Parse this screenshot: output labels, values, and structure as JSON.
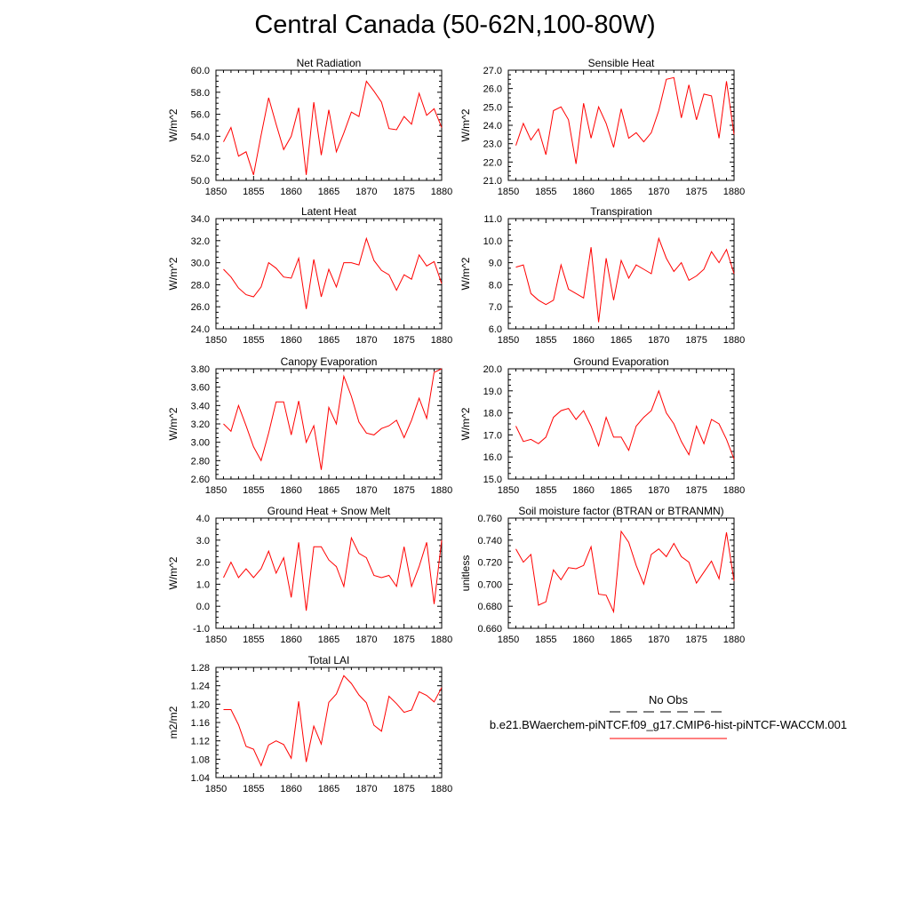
{
  "title": "Central Canada (50-62N,100-80W)",
  "colors": {
    "series": "#ff0000",
    "obs": "#000000",
    "axis": "#000000"
  },
  "legend": {
    "obs_label": "No Obs",
    "case_label": "b.e21.BWaerchem-piNTCF.f09_g17.CMIP6-hist-piNTCF-WACCM.001"
  },
  "chart_data": [
    {
      "type": "line",
      "title": "Net Radiation",
      "ylabel": "W/m^2",
      "xlim": [
        1850,
        1880
      ],
      "ylim": [
        50.0,
        60.0
      ],
      "xticks": [
        "1850",
        "1855",
        "1860",
        "1865",
        "1870",
        "1875",
        "1880"
      ],
      "yticks": [
        "50.0",
        "52.0",
        "54.0",
        "56.0",
        "58.0",
        "60.0"
      ],
      "x": [
        1851,
        1852,
        1853,
        1854,
        1855,
        1856,
        1857,
        1858,
        1859,
        1860,
        1861,
        1862,
        1863,
        1864,
        1865,
        1866,
        1867,
        1868,
        1869,
        1870,
        1871,
        1872,
        1873,
        1874,
        1875,
        1876,
        1877,
        1878,
        1879,
        1880
      ],
      "series": [
        {
          "name": "b.e21.BWaerchem-piNTCF.f09_g17.CMIP6-hist-piNTCF-WACCM.001",
          "values": [
            53.5,
            54.8,
            52.2,
            52.6,
            50.5,
            54.1,
            57.5,
            55.1,
            52.8,
            54.0,
            56.6,
            50.5,
            57.1,
            52.3,
            56.4,
            52.6,
            54.3,
            56.2,
            55.8,
            59.0,
            58.1,
            57.1,
            54.7,
            54.6,
            55.8,
            55.1,
            57.9,
            55.9,
            56.5,
            54.8
          ]
        }
      ]
    },
    {
      "type": "line",
      "title": "Sensible Heat",
      "ylabel": "W/m^2",
      "xlim": [
        1850,
        1880
      ],
      "ylim": [
        21.0,
        27.0
      ],
      "xticks": [
        "1850",
        "1855",
        "1860",
        "1865",
        "1870",
        "1875",
        "1880"
      ],
      "yticks": [
        "21.0",
        "22.0",
        "23.0",
        "24.0",
        "25.0",
        "26.0",
        "27.0"
      ],
      "x": [
        1851,
        1852,
        1853,
        1854,
        1855,
        1856,
        1857,
        1858,
        1859,
        1860,
        1861,
        1862,
        1863,
        1864,
        1865,
        1866,
        1867,
        1868,
        1869,
        1870,
        1871,
        1872,
        1873,
        1874,
        1875,
        1876,
        1877,
        1878,
        1879,
        1880
      ],
      "series": [
        {
          "name": "b.e21.BWaerchem-piNTCF.f09_g17.CMIP6-hist-piNTCF-WACCM.001",
          "values": [
            22.9,
            24.1,
            23.2,
            23.8,
            22.4,
            24.8,
            25.0,
            24.3,
            21.9,
            25.2,
            23.3,
            25.0,
            24.1,
            22.8,
            24.9,
            23.3,
            23.6,
            23.1,
            23.6,
            24.8,
            26.5,
            26.6,
            24.4,
            26.2,
            24.3,
            25.7,
            25.6,
            23.3,
            26.4,
            23.5
          ]
        }
      ]
    },
    {
      "type": "line",
      "title": "Latent Heat",
      "ylabel": "W/m^2",
      "xlim": [
        1850,
        1880
      ],
      "ylim": [
        24.0,
        34.0
      ],
      "xticks": [
        "1850",
        "1855",
        "1860",
        "1865",
        "1870",
        "1875",
        "1880"
      ],
      "yticks": [
        "24.0",
        "26.0",
        "28.0",
        "30.0",
        "32.0",
        "34.0"
      ],
      "x": [
        1851,
        1852,
        1853,
        1854,
        1855,
        1856,
        1857,
        1858,
        1859,
        1860,
        1861,
        1862,
        1863,
        1864,
        1865,
        1866,
        1867,
        1868,
        1869,
        1870,
        1871,
        1872,
        1873,
        1874,
        1875,
        1876,
        1877,
        1878,
        1879,
        1880
      ],
      "series": [
        {
          "name": "b.e21.BWaerchem-piNTCF.f09_g17.CMIP6-hist-piNTCF-WACCM.001",
          "values": [
            29.4,
            28.7,
            27.7,
            27.1,
            26.9,
            27.8,
            30.0,
            29.5,
            28.7,
            28.6,
            30.4,
            25.8,
            30.3,
            26.9,
            29.4,
            27.8,
            30.0,
            30.0,
            29.8,
            32.2,
            30.2,
            29.3,
            28.9,
            27.5,
            28.9,
            28.5,
            30.7,
            29.7,
            30.1,
            28.1
          ]
        }
      ]
    },
    {
      "type": "line",
      "title": "Transpiration",
      "ylabel": "W/m^2",
      "xlim": [
        1850,
        1880
      ],
      "ylim": [
        6.0,
        11.0
      ],
      "xticks": [
        "1850",
        "1855",
        "1860",
        "1865",
        "1870",
        "1875",
        "1880"
      ],
      "yticks": [
        "6.0",
        "7.0",
        "8.0",
        "9.0",
        "10.0",
        "11.0"
      ],
      "x": [
        1851,
        1852,
        1853,
        1854,
        1855,
        1856,
        1857,
        1858,
        1859,
        1860,
        1861,
        1862,
        1863,
        1864,
        1865,
        1866,
        1867,
        1868,
        1869,
        1870,
        1871,
        1872,
        1873,
        1874,
        1875,
        1876,
        1877,
        1878,
        1879,
        1880
      ],
      "series": [
        {
          "name": "b.e21.BWaerchem-piNTCF.f09_g17.CMIP6-hist-piNTCF-WACCM.001",
          "values": [
            8.8,
            8.9,
            7.6,
            7.3,
            7.1,
            7.3,
            8.9,
            7.8,
            7.6,
            7.4,
            9.7,
            6.3,
            9.2,
            7.3,
            9.1,
            8.3,
            8.9,
            8.7,
            8.5,
            10.1,
            9.2,
            8.6,
            9.0,
            8.2,
            8.4,
            8.7,
            9.5,
            9.0,
            9.6,
            8.5
          ]
        }
      ]
    },
    {
      "type": "line",
      "title": "Canopy Evaporation",
      "ylabel": "W/m^2",
      "xlim": [
        1850,
        1880
      ],
      "ylim": [
        2.6,
        3.8
      ],
      "xticks": [
        "1850",
        "1855",
        "1860",
        "1865",
        "1870",
        "1875",
        "1880"
      ],
      "yticks": [
        "2.60",
        "2.80",
        "3.00",
        "3.20",
        "3.40",
        "3.60",
        "3.80"
      ],
      "x": [
        1851,
        1852,
        1853,
        1854,
        1855,
        1856,
        1857,
        1858,
        1859,
        1860,
        1861,
        1862,
        1863,
        1864,
        1865,
        1866,
        1867,
        1868,
        1869,
        1870,
        1871,
        1872,
        1873,
        1874,
        1875,
        1876,
        1877,
        1878,
        1879,
        1880
      ],
      "series": [
        {
          "name": "b.e21.BWaerchem-piNTCF.f09_g17.CMIP6-hist-piNTCF-WACCM.001",
          "values": [
            3.2,
            3.12,
            3.4,
            3.18,
            2.95,
            2.8,
            3.1,
            3.44,
            3.44,
            3.08,
            3.45,
            3.0,
            3.18,
            2.7,
            3.38,
            3.2,
            3.72,
            3.5,
            3.22,
            3.1,
            3.08,
            3.15,
            3.18,
            3.24,
            3.05,
            3.24,
            3.48,
            3.26,
            3.76,
            3.8
          ]
        }
      ]
    },
    {
      "type": "line",
      "title": "Ground Evaporation",
      "ylabel": "W/m^2",
      "xlim": [
        1850,
        1880
      ],
      "ylim": [
        15.0,
        20.0
      ],
      "xticks": [
        "1850",
        "1855",
        "1860",
        "1865",
        "1870",
        "1875",
        "1880"
      ],
      "yticks": [
        "15.0",
        "16.0",
        "17.0",
        "18.0",
        "19.0",
        "20.0"
      ],
      "x": [
        1851,
        1852,
        1853,
        1854,
        1855,
        1856,
        1857,
        1858,
        1859,
        1860,
        1861,
        1862,
        1863,
        1864,
        1865,
        1866,
        1867,
        1868,
        1869,
        1870,
        1871,
        1872,
        1873,
        1874,
        1875,
        1876,
        1877,
        1878,
        1879,
        1880
      ],
      "series": [
        {
          "name": "b.e21.BWaerchem-piNTCF.f09_g17.CMIP6-hist-piNTCF-WACCM.001",
          "values": [
            17.4,
            16.7,
            16.8,
            16.6,
            16.9,
            17.8,
            18.1,
            18.2,
            17.7,
            18.1,
            17.4,
            16.5,
            17.8,
            16.9,
            16.9,
            16.3,
            17.4,
            17.8,
            18.1,
            19.0,
            18.0,
            17.5,
            16.7,
            16.1,
            17.4,
            16.6,
            17.7,
            17.5,
            16.8,
            15.9
          ]
        }
      ]
    },
    {
      "type": "line",
      "title": "Ground Heat + Snow Melt",
      "ylabel": "W/m^2",
      "xlim": [
        1850,
        1880
      ],
      "ylim": [
        -1.0,
        4.0
      ],
      "xticks": [
        "1850",
        "1855",
        "1860",
        "1865",
        "1870",
        "1875",
        "1880"
      ],
      "yticks": [
        "-1.0",
        "0.0",
        "1.0",
        "2.0",
        "3.0",
        "4.0"
      ],
      "x": [
        1851,
        1852,
        1853,
        1854,
        1855,
        1856,
        1857,
        1858,
        1859,
        1860,
        1861,
        1862,
        1863,
        1864,
        1865,
        1866,
        1867,
        1868,
        1869,
        1870,
        1871,
        1872,
        1873,
        1874,
        1875,
        1876,
        1877,
        1878,
        1879,
        1880
      ],
      "series": [
        {
          "name": "b.e21.BWaerchem-piNTCF.f09_g17.CMIP6-hist-piNTCF-WACCM.001",
          "values": [
            1.3,
            2.0,
            1.3,
            1.7,
            1.3,
            1.7,
            2.5,
            1.5,
            2.2,
            0.4,
            2.9,
            -0.2,
            2.7,
            2.7,
            2.1,
            1.8,
            0.9,
            3.1,
            2.4,
            2.2,
            1.4,
            1.3,
            1.4,
            0.9,
            2.7,
            0.9,
            1.8,
            2.9,
            0.1,
            3.0
          ]
        }
      ]
    },
    {
      "type": "line",
      "title": "Soil moisture factor (BTRAN or BTRANMN)",
      "ylabel": "unitless",
      "xlim": [
        1850,
        1880
      ],
      "ylim": [
        0.66,
        0.76
      ],
      "xticks": [
        "1850",
        "1855",
        "1860",
        "1865",
        "1870",
        "1875",
        "1880"
      ],
      "yticks": [
        "0.660",
        "0.680",
        "0.700",
        "0.720",
        "0.740",
        "0.760"
      ],
      "x": [
        1851,
        1852,
        1853,
        1854,
        1855,
        1856,
        1857,
        1858,
        1859,
        1860,
        1861,
        1862,
        1863,
        1864,
        1865,
        1866,
        1867,
        1868,
        1869,
        1870,
        1871,
        1872,
        1873,
        1874,
        1875,
        1876,
        1877,
        1878,
        1879,
        1880
      ],
      "series": [
        {
          "name": "b.e21.BWaerchem-piNTCF.f09_g17.CMIP6-hist-piNTCF-WACCM.001",
          "values": [
            0.732,
            0.72,
            0.727,
            0.681,
            0.684,
            0.713,
            0.704,
            0.715,
            0.714,
            0.717,
            0.734,
            0.691,
            0.69,
            0.675,
            0.748,
            0.738,
            0.717,
            0.7,
            0.727,
            0.732,
            0.725,
            0.737,
            0.725,
            0.72,
            0.701,
            0.711,
            0.721,
            0.705,
            0.747,
            0.703
          ]
        }
      ]
    },
    {
      "type": "line",
      "title": "Total LAI",
      "ylabel": "m2/m2",
      "xlim": [
        1850,
        1880
      ],
      "ylim": [
        1.04,
        1.28
      ],
      "xticks": [
        "1850",
        "1855",
        "1860",
        "1865",
        "1870",
        "1875",
        "1880"
      ],
      "yticks": [
        "1.04",
        "1.08",
        "1.12",
        "1.16",
        "1.20",
        "1.24",
        "1.28"
      ],
      "x": [
        1851,
        1852,
        1853,
        1854,
        1855,
        1856,
        1857,
        1858,
        1859,
        1860,
        1861,
        1862,
        1863,
        1864,
        1865,
        1866,
        1867,
        1868,
        1869,
        1870,
        1871,
        1872,
        1873,
        1874,
        1875,
        1876,
        1877,
        1878,
        1879,
        1880
      ],
      "series": [
        {
          "name": "b.e21.BWaerchem-piNTCF.f09_g17.CMIP6-hist-piNTCF-WACCM.001",
          "values": [
            1.188,
            1.188,
            1.155,
            1.108,
            1.102,
            1.066,
            1.111,
            1.12,
            1.112,
            1.082,
            1.206,
            1.074,
            1.152,
            1.113,
            1.204,
            1.222,
            1.262,
            1.245,
            1.22,
            1.203,
            1.154,
            1.141,
            1.217,
            1.201,
            1.182,
            1.187,
            1.227,
            1.219,
            1.205,
            1.236
          ]
        }
      ]
    }
  ]
}
